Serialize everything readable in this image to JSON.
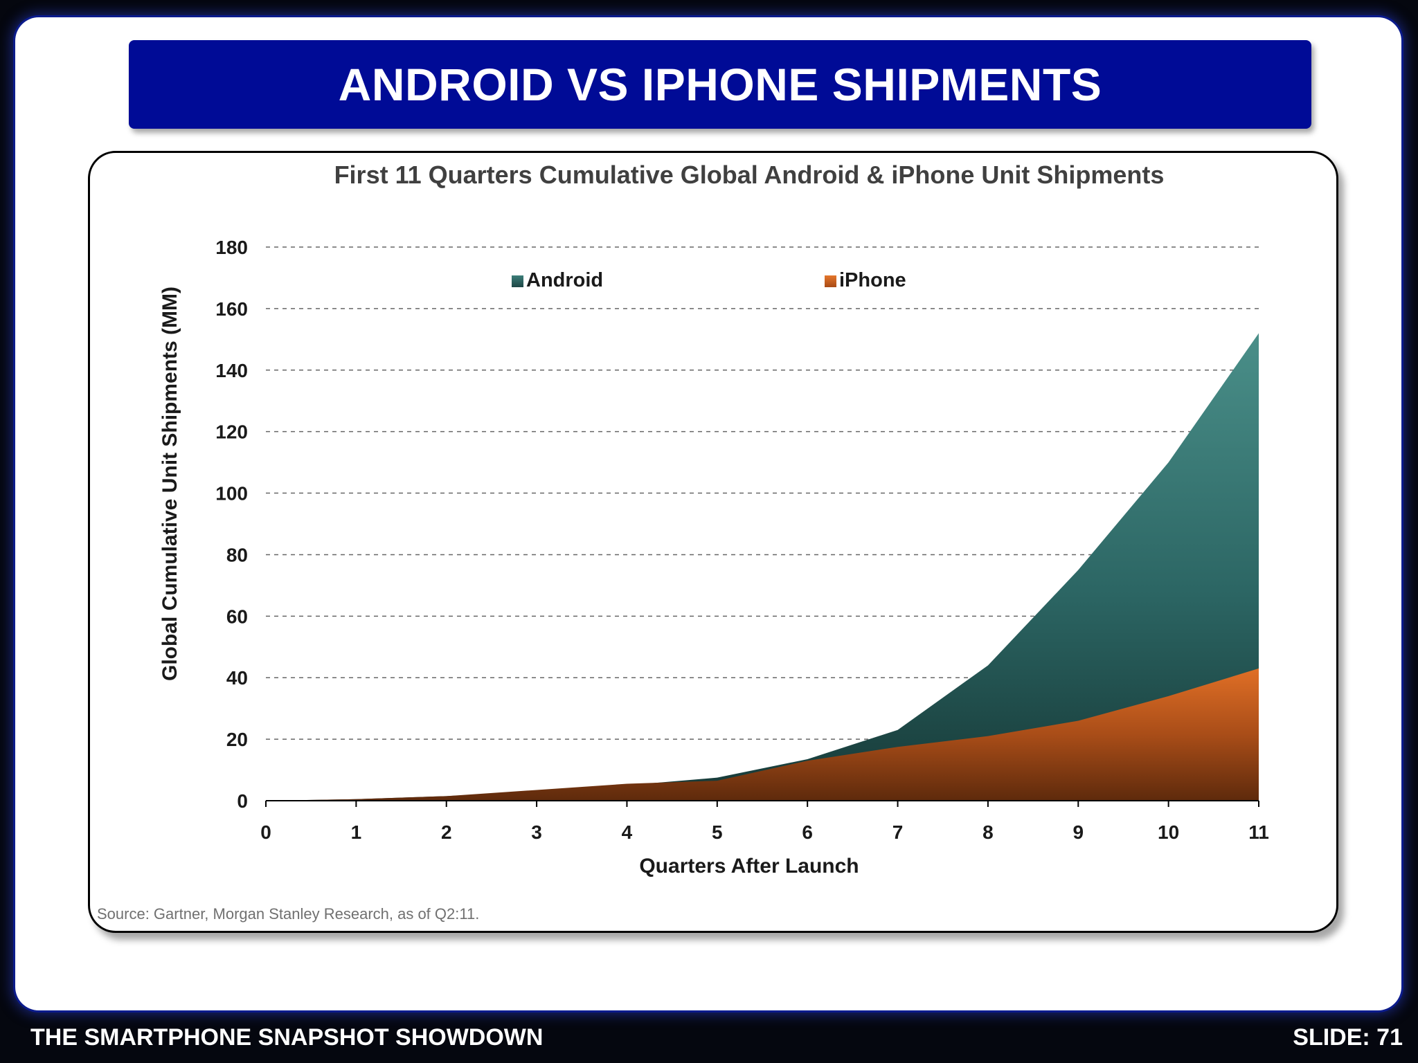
{
  "slide": {
    "title": "ANDROID VS IPHONE SHIPMENTS",
    "footer_left": "THE SMARTPHONE SNAPSHOT SHOWDOWN",
    "footer_right": "SLIDE: 71"
  },
  "colors": {
    "banner": "#000b96",
    "android": "#2f6d6a",
    "iphone": "#c8601f"
  },
  "chart_data": {
    "type": "area",
    "title": "First 11 Quarters Cumulative Global Android & iPhone Unit Shipments",
    "xlabel": "Quarters After Launch",
    "ylabel": "Global Cumulative Unit Shipments (MM)",
    "source": "Source: Gartner, Morgan Stanley Research, as of Q2:11.",
    "x": [
      0,
      1,
      2,
      3,
      4,
      5,
      6,
      7,
      8,
      9,
      10,
      11
    ],
    "xticks": [
      "0",
      "1",
      "2",
      "3",
      "4",
      "5",
      "6",
      "7",
      "8",
      "9",
      "10",
      "11"
    ],
    "yticks": [
      "0",
      "20",
      "40",
      "60",
      "80",
      "100",
      "120",
      "140",
      "160",
      "180"
    ],
    "ylim": [
      0,
      180
    ],
    "grid": true,
    "legend": "top",
    "stacked": false,
    "series": [
      {
        "name": "Android",
        "values": [
          0,
          0.5,
          1.5,
          3,
          5,
          7.5,
          13.5,
          23,
          44,
          75,
          110,
          152
        ]
      },
      {
        "name": "iPhone",
        "values": [
          0,
          0.5,
          1.5,
          3.5,
          5.5,
          6.5,
          13,
          17.5,
          21,
          26,
          34,
          43
        ]
      }
    ]
  }
}
